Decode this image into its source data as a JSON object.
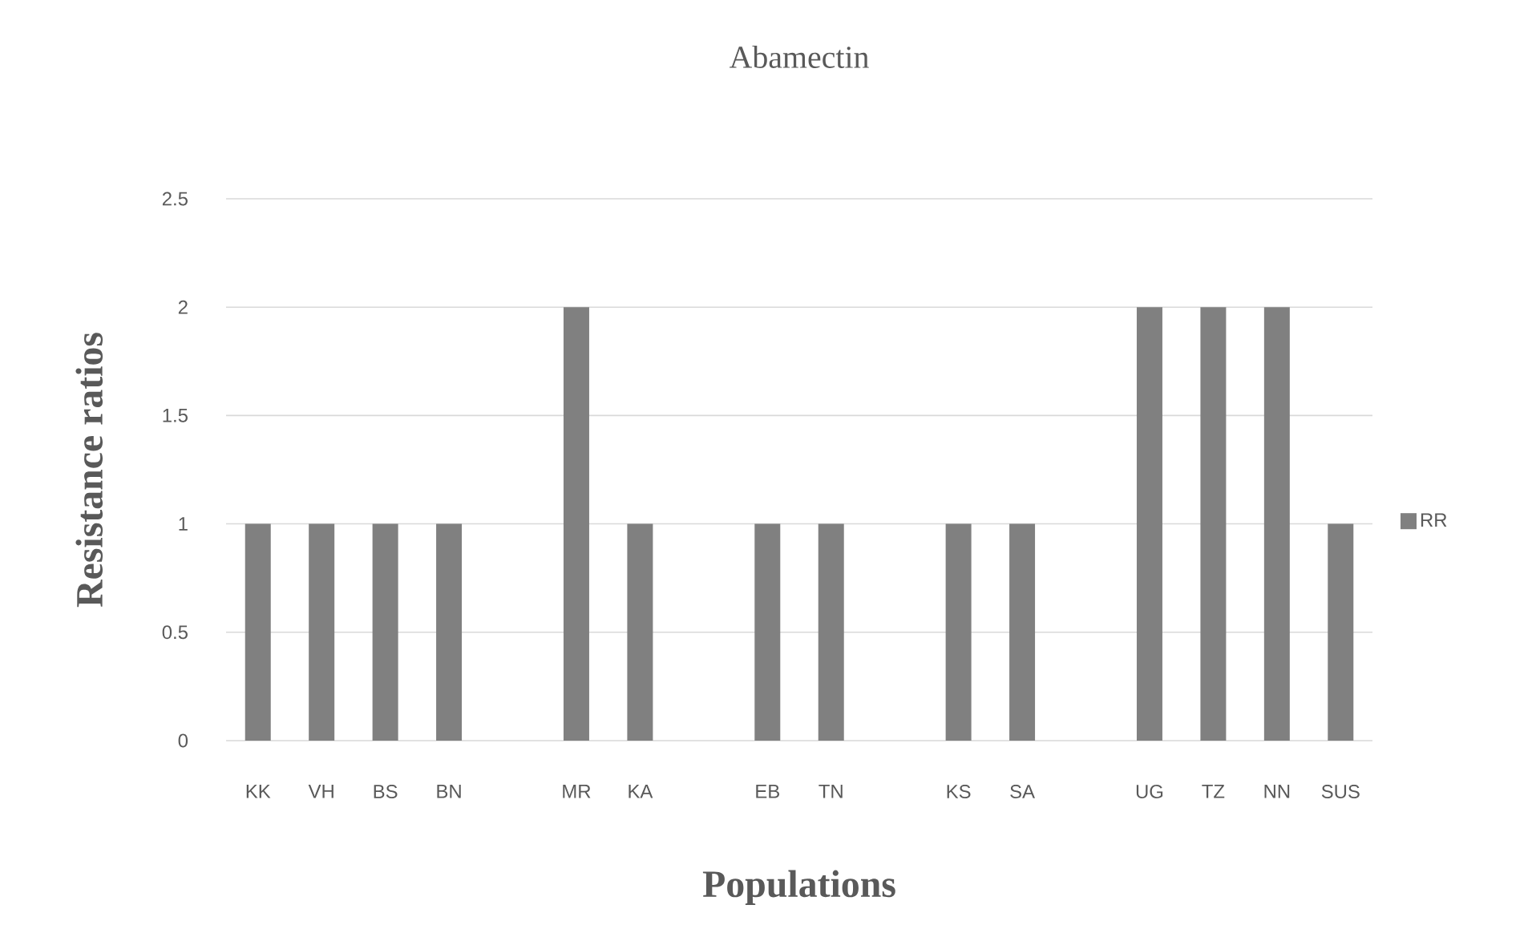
{
  "chart_data": {
    "type": "bar",
    "title": "Abamectin",
    "xlabel": "Populations",
    "ylabel": "Resistance ratios",
    "categories": [
      "KK",
      "VH",
      "BS",
      "BN",
      null,
      "MR",
      "KA",
      null,
      "EB",
      "TN",
      null,
      "KS",
      "SA",
      null,
      "UG",
      "TZ",
      "NN",
      "SUS"
    ],
    "series": [
      {
        "name": "RR",
        "color": "#808080",
        "values": [
          1,
          1,
          1,
          1,
          null,
          2,
          1,
          null,
          1,
          1,
          null,
          1,
          1,
          null,
          2,
          2,
          2,
          1
        ]
      }
    ],
    "ylim": [
      0,
      2.5
    ],
    "yticks": [
      0,
      0.5,
      1,
      1.5,
      2,
      2.5
    ],
    "grid": "y",
    "legend": "right"
  }
}
